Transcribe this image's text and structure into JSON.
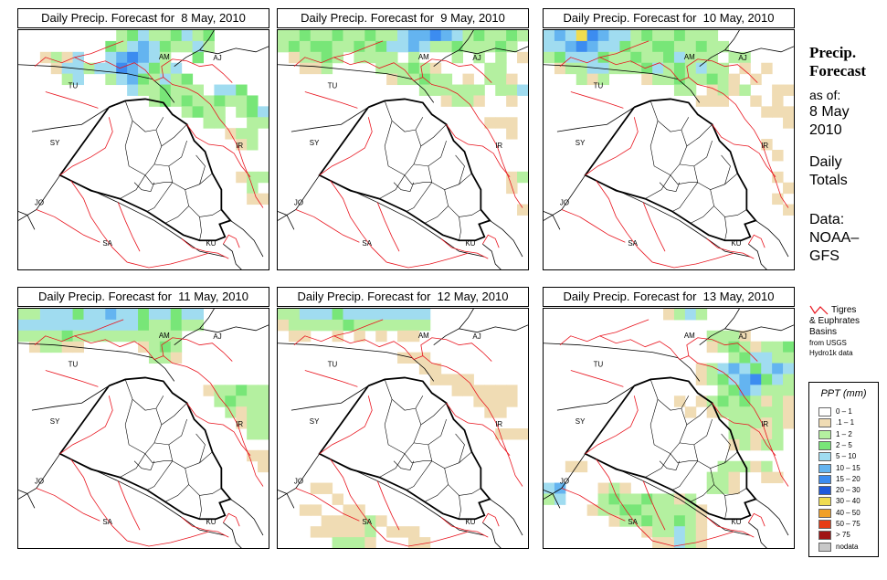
{
  "panels": [
    {
      "title": "Daily Precip. Forecast for  8 May, 2010"
    },
    {
      "title": "Daily Precip. Forecast for  9 May, 2010"
    },
    {
      "title": "Daily Precip. Forecast for  10 May, 2010"
    },
    {
      "title": "Daily Precip. Forecast for  11 May, 2010"
    },
    {
      "title": "Daily Precip. Forecast for  12 May, 2010"
    },
    {
      "title": "Daily Precip. Forecast for  13 May, 2010"
    }
  ],
  "country_labels": [
    "AM",
    "AJ",
    "TU",
    "SY",
    "IR",
    "JO",
    "SA",
    "KU"
  ],
  "sidebar": {
    "title_line1": "Precip.",
    "title_line2": "Forecast",
    "asof": "as of:",
    "date_line1": "8 May",
    "date_line2": "2010",
    "totals_line1": "Daily",
    "totals_line2": "Totals",
    "data_line1": "Data:",
    "data_line2": "NOAA–",
    "data_line3": "GFS"
  },
  "basin_note": {
    "line1": "Tigres",
    "line2": "& Euphrates",
    "line3": "Basins",
    "line4": "from USGS",
    "line5": "Hydro1k data",
    "line_color": "#e8141e"
  },
  "legend": {
    "title": "PPT (mm)",
    "items": [
      {
        "label": "0 – 1",
        "color": "#ffffff"
      },
      {
        "label": ".1 – 1",
        "color": "#f0dcb4"
      },
      {
        "label": "1 – 2",
        "color": "#b4f0a0"
      },
      {
        "label": "2 – 5",
        "color": "#78e678"
      },
      {
        "label": "5 – 10",
        "color": "#a0dcf0"
      },
      {
        "label": "10 – 15",
        "color": "#64b4f0"
      },
      {
        "label": "15 – 20",
        "color": "#3c8cf0"
      },
      {
        "label": "20 – 30",
        "color": "#1e5adc"
      },
      {
        "label": "30 – 40",
        "color": "#f0dc50"
      },
      {
        "label": "40 – 50",
        "color": "#f0a028"
      },
      {
        "label": "50 – 75",
        "color": "#e63c14"
      },
      {
        "label": "> 75",
        "color": "#a01414"
      },
      {
        "label": "nodata",
        "color": "#c8c8c8"
      }
    ]
  }
}
